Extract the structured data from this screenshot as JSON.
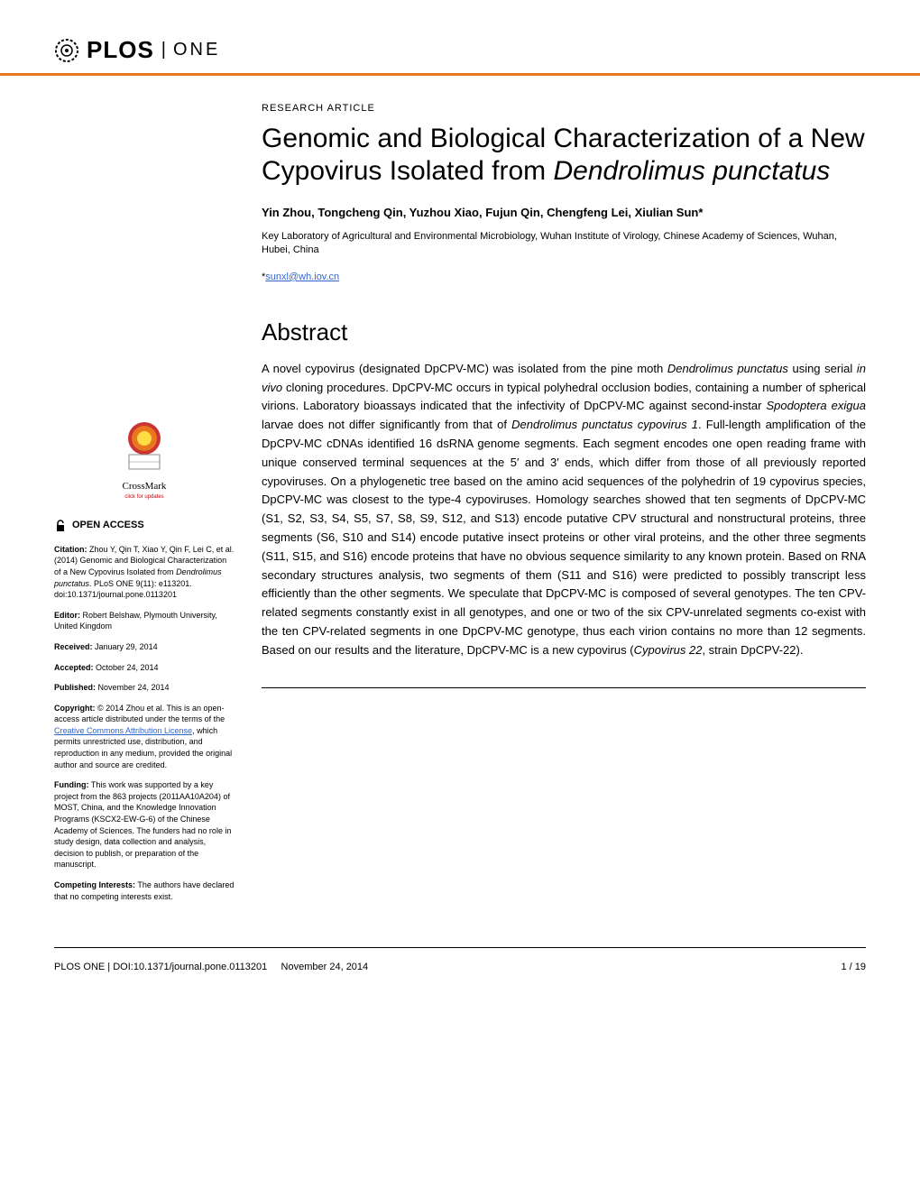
{
  "header": {
    "logo_plos": "PLOS",
    "logo_one": "ONE"
  },
  "article": {
    "type": "RESEARCH ARTICLE",
    "title_part1": "Genomic and Biological Characterization of a New Cypovirus Isolated from",
    "title_italic": "Dendrolimus punctatus",
    "authors": "Yin Zhou, Tongcheng Qin, Yuzhou Xiao, Fujun Qin, Chengfeng Lei, Xiulian Sun*",
    "affiliation": "Key Laboratory of Agricultural and Environmental Microbiology, Wuhan Institute of Virology, Chinese Academy of Sciences, Wuhan, Hubei, China",
    "corresponding_prefix": "*",
    "corresponding_email": "sunxl@wh.iov.cn"
  },
  "abstract": {
    "heading": "Abstract",
    "text": "A novel cypovirus (designated DpCPV-MC) was isolated from the pine moth <i>Dendrolimus punctatus</i> using serial <i>in vivo</i> cloning procedures. DpCPV-MC occurs in typical polyhedral occlusion bodies, containing a number of spherical virions. Laboratory bioassays indicated that the infectivity of DpCPV-MC against second-instar <i>Spodoptera exigua</i> larvae does not differ significantly from that of <i>Dendrolimus punctatus cypovirus 1</i>. Full-length amplification of the DpCPV-MC cDNAs identified 16 dsRNA genome segments. Each segment encodes one open reading frame with unique conserved terminal sequences at the 5′ and 3′ ends, which differ from those of all previously reported cypoviruses. On a phylogenetic tree based on the amino acid sequences of the polyhedrin of 19 cypovirus species, DpCPV-MC was closest to the type-4 cypoviruses. Homology searches showed that ten segments of DpCPV-MC (S1, S2, S3, S4, S5, S7, S8, S9, S12, and S13) encode putative CPV structural and nonstructural proteins, three segments (S6, S10 and S14) encode putative insect proteins or other viral proteins, and the other three segments (S11, S15, and S16) encode proteins that have no obvious sequence similarity to any known protein. Based on RNA secondary structures analysis, two segments of them (S11 and S16) were predicted to possibly transcript less efficiently than the other segments. We speculate that DpCPV-MC is composed of several genotypes. The ten CPV-related segments constantly exist in all genotypes, and one or two of the six CPV-unrelated segments co-exist with the ten CPV-related segments in one DpCPV-MC genotype, thus each virion contains no more than 12 segments. Based on our results and the literature, DpCPV-MC is a new cypovirus (<i>Cypovirus 22</i>, strain DpCPV-22)."
  },
  "sidebar": {
    "crossmark_label": "CrossMark",
    "crossmark_sublabel": "click for updates",
    "open_access_label": "OPEN ACCESS",
    "citation_label": "Citation:",
    "citation_text": " Zhou Y, Qin T, Xiao Y, Qin F, Lei C, et al. (2014) Genomic and Biological Characterization of a New Cypovirus Isolated from ",
    "citation_italic": "Dendrolimus punctatus",
    "citation_text2": ". PLoS ONE 9(11): e113201. doi:10.1371/journal.pone.0113201",
    "editor_label": "Editor:",
    "editor_text": " Robert Belshaw, Plymouth University, United Kingdom",
    "received_label": "Received:",
    "received_text": " January 29, 2014",
    "accepted_label": "Accepted:",
    "accepted_text": " October 24, 2014",
    "published_label": "Published:",
    "published_text": " November 24, 2014",
    "copyright_label": "Copyright:",
    "copyright_text1": " © 2014 Zhou et al. This is an open-access article distributed under the terms of the ",
    "copyright_link": "Creative Commons Attribution License",
    "copyright_text2": ", which permits unrestricted use, distribution, and reproduction in any medium, provided the original author and source are credited.",
    "funding_label": "Funding:",
    "funding_text": " This work was supported by a key project from the 863 projects (2011AA10A204) of MOST, China, and the Knowledge Innovation Programs (KSCX2-EW-G-6) of the Chinese Academy of Sciences. The funders had no role in study design, data collection and analysis, decision to publish, or preparation of the manuscript.",
    "competing_label": "Competing Interests:",
    "competing_text": " The authors have declared that no competing interests exist."
  },
  "footer": {
    "journal_doi": "PLOS ONE | DOI:10.1371/journal.pone.0113201",
    "date": "November 24, 2014",
    "page": "1 / 19"
  },
  "colors": {
    "accent": "#e8771f",
    "link": "#3366cc",
    "text": "#000000",
    "background": "#ffffff",
    "crossmark_red": "#cc0000"
  }
}
